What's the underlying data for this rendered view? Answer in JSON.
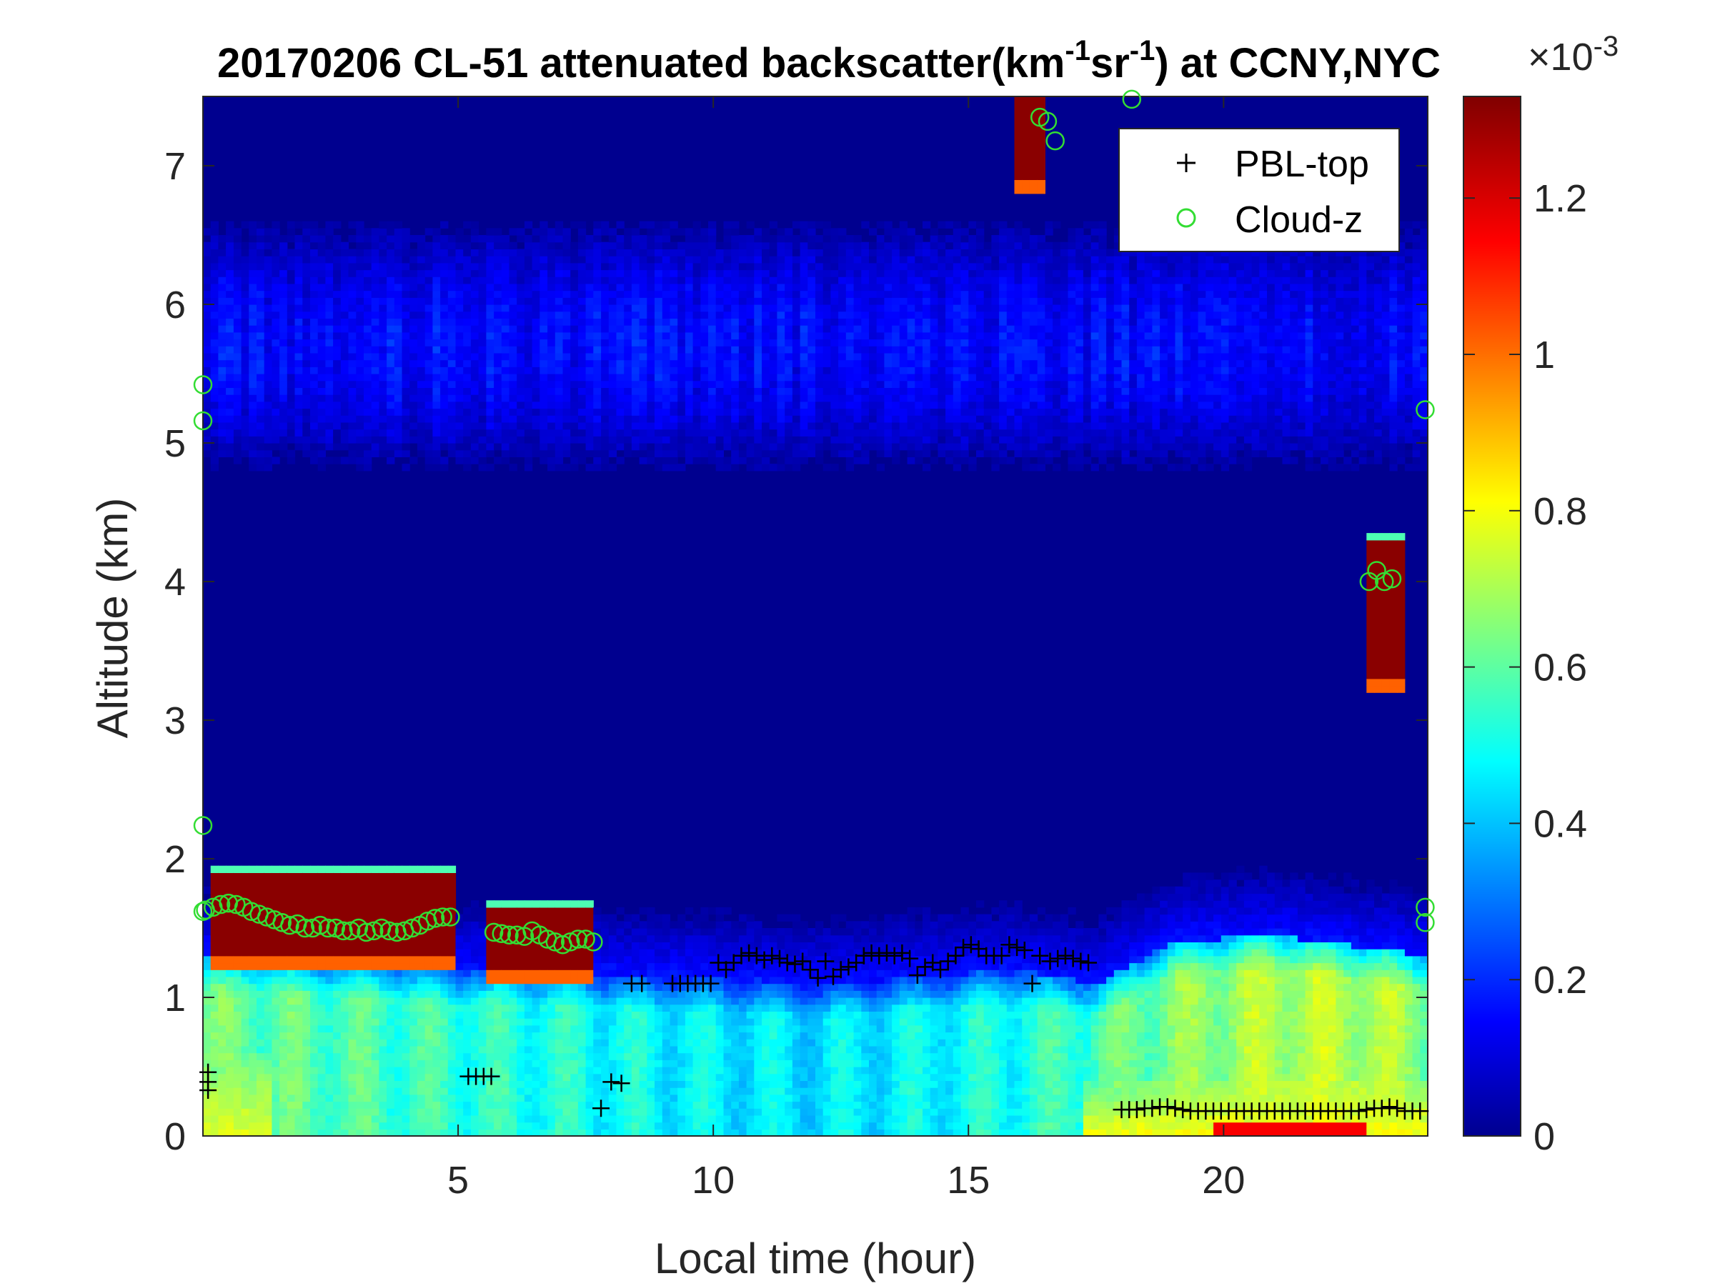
{
  "chart_data": {
    "type": "heatmap",
    "title": {
      "prefix": "20170206  CL-51 attenuated backscatter(km",
      "sup1": "-1",
      "mid": "sr",
      "sup2": "-1",
      "suffix": ") at CCNY,NYC"
    },
    "xlabel": "Local time (hour)",
    "ylabel": "Altitude (km)",
    "xlim": [
      0,
      24
    ],
    "ylim": [
      0,
      7.5
    ],
    "xticks": [
      5,
      10,
      15,
      20
    ],
    "yticks": [
      0,
      1,
      2,
      3,
      4,
      5,
      6,
      7
    ],
    "colorbar": {
      "colormap": "jet",
      "range": [
        0,
        1.33
      ],
      "ticks": [
        0,
        0.2,
        0.4,
        0.6,
        0.8,
        1,
        1.2
      ],
      "exponent_base": "×10",
      "exponent": "-3"
    },
    "legend": {
      "location": "top-right",
      "entries": [
        {
          "name": "PBL-top",
          "marker": "+",
          "color": "#000000"
        },
        {
          "name": "Cloud-z",
          "marker": "o",
          "color": "#33dd33"
        }
      ]
    },
    "series": [
      {
        "name": "PBL-top",
        "x": [
          0.1,
          0.1,
          0.1,
          5.2,
          5.35,
          5.5,
          5.65,
          7.8,
          8.0,
          8.2,
          8.4,
          8.6,
          9.2,
          9.35,
          9.5,
          9.65,
          9.8,
          9.95,
          10.1,
          10.25,
          10.4,
          10.55,
          10.7,
          10.85,
          11.0,
          11.15,
          11.3,
          11.45,
          11.6,
          11.75,
          11.9,
          12.05,
          12.2,
          12.35,
          12.5,
          12.65,
          12.8,
          12.95,
          13.1,
          13.25,
          13.4,
          13.55,
          13.7,
          13.85,
          14.0,
          14.15,
          14.3,
          14.45,
          14.6,
          14.75,
          14.9,
          15.05,
          15.2,
          15.35,
          15.5,
          15.65,
          15.8,
          15.95,
          16.1,
          16.25,
          16.4,
          16.6,
          16.75,
          16.9,
          17.05,
          17.2,
          17.35,
          18.0,
          18.15,
          18.3,
          18.45,
          18.6,
          18.75,
          18.9,
          19.05,
          19.2,
          19.35,
          19.5,
          19.65,
          19.8,
          19.95,
          20.1,
          20.25,
          20.4,
          20.55,
          20.7,
          20.85,
          21.0,
          21.15,
          21.3,
          21.45,
          21.6,
          21.75,
          21.9,
          22.05,
          22.2,
          22.35,
          22.5,
          22.65,
          22.8,
          22.95,
          23.1,
          23.25,
          23.4,
          23.55,
          23.7,
          23.85
        ],
        "y": [
          0.46,
          0.39,
          0.33,
          0.43,
          0.43,
          0.43,
          0.43,
          0.2,
          0.39,
          0.38,
          1.1,
          1.1,
          1.1,
          1.1,
          1.1,
          1.1,
          1.1,
          1.1,
          1.25,
          1.2,
          1.25,
          1.3,
          1.32,
          1.3,
          1.27,
          1.3,
          1.28,
          1.25,
          1.24,
          1.26,
          1.2,
          1.14,
          1.26,
          1.15,
          1.2,
          1.22,
          1.25,
          1.3,
          1.32,
          1.3,
          1.32,
          1.3,
          1.32,
          1.28,
          1.16,
          1.22,
          1.25,
          1.2,
          1.26,
          1.3,
          1.36,
          1.38,
          1.35,
          1.3,
          1.3,
          1.3,
          1.38,
          1.36,
          1.34,
          1.1,
          1.3,
          1.26,
          1.28,
          1.3,
          1.28,
          1.26,
          1.25,
          0.19,
          0.19,
          0.19,
          0.2,
          0.2,
          0.21,
          0.21,
          0.2,
          0.19,
          0.18,
          0.18,
          0.18,
          0.18,
          0.18,
          0.18,
          0.18,
          0.18,
          0.18,
          0.18,
          0.18,
          0.18,
          0.18,
          0.18,
          0.18,
          0.18,
          0.18,
          0.18,
          0.18,
          0.18,
          0.18,
          0.18,
          0.18,
          0.19,
          0.2,
          0.2,
          0.21,
          0.2,
          0.18,
          0.18,
          0.18
        ]
      },
      {
        "name": "Cloud-z",
        "x": [
          0.0,
          0.0,
          0.0,
          0.0,
          0.05,
          0.2,
          0.35,
          0.5,
          0.65,
          0.8,
          0.95,
          1.1,
          1.25,
          1.4,
          1.55,
          1.7,
          1.85,
          2.0,
          2.15,
          2.3,
          2.45,
          2.6,
          2.75,
          2.9,
          3.05,
          3.2,
          3.35,
          3.5,
          3.65,
          3.8,
          3.95,
          4.1,
          4.25,
          4.4,
          4.55,
          4.7,
          4.85,
          5.7,
          5.85,
          6.0,
          6.15,
          6.3,
          6.45,
          6.6,
          6.75,
          6.9,
          7.05,
          7.2,
          7.35,
          7.5,
          7.65,
          16.4,
          16.55,
          16.7,
          18.2,
          22.85,
          23.0,
          23.15,
          23.3,
          23.95,
          23.95,
          23.95
        ],
        "y": [
          5.42,
          5.16,
          2.24,
          1.62,
          1.63,
          1.65,
          1.67,
          1.68,
          1.67,
          1.65,
          1.62,
          1.6,
          1.58,
          1.56,
          1.54,
          1.52,
          1.53,
          1.5,
          1.5,
          1.52,
          1.5,
          1.5,
          1.48,
          1.48,
          1.5,
          1.47,
          1.48,
          1.5,
          1.48,
          1.47,
          1.48,
          1.5,
          1.52,
          1.55,
          1.57,
          1.58,
          1.58,
          1.47,
          1.46,
          1.45,
          1.45,
          1.44,
          1.48,
          1.45,
          1.42,
          1.4,
          1.38,
          1.4,
          1.42,
          1.42,
          1.4,
          7.35,
          7.32,
          7.18,
          7.48,
          4.0,
          4.08,
          4.0,
          4.02,
          5.24,
          1.65,
          1.54
        ]
      }
    ],
    "field_features": {
      "boundary_layer": [
        [
          0,
          1.3,
          0.48
        ],
        [
          3,
          1.25,
          0.45
        ],
        [
          5,
          1.2,
          0.42
        ],
        [
          7,
          1.2,
          0.4
        ],
        [
          8.5,
          1.15,
          0.38
        ],
        [
          10,
          1.15,
          0.36
        ],
        [
          12,
          1.1,
          0.35
        ],
        [
          14,
          1.15,
          0.37
        ],
        [
          16,
          1.2,
          0.4
        ],
        [
          17.5,
          1.1,
          0.45
        ],
        [
          19,
          1.4,
          0.5
        ],
        [
          21,
          1.45,
          0.55
        ],
        [
          23,
          1.35,
          0.55
        ],
        [
          24,
          1.3,
          0.5
        ]
      ],
      "clouds": [
        [
          0.1,
          4.95,
          1.3,
          1.9
        ],
        [
          5.6,
          7.7,
          1.2,
          1.65
        ],
        [
          15.9,
          16.5,
          6.9,
          7.5
        ],
        [
          22.85,
          23.5,
          3.3,
          4.3
        ]
      ],
      "surface_layer": [
        [
          17.3,
          24,
          0,
          0.4,
          0.62
        ],
        [
          0,
          1.3,
          0,
          0.6,
          0.6
        ]
      ],
      "aerosol_band": [
        4.8,
        6.6,
        0.12
      ]
    }
  }
}
